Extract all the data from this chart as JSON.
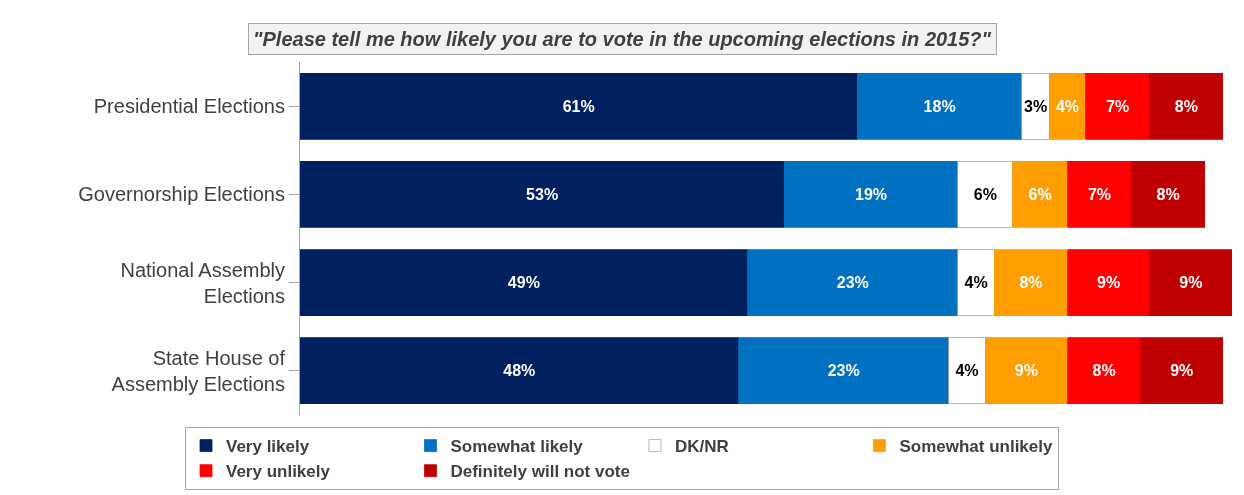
{
  "chart_data": {
    "type": "bar",
    "orientation": "horizontal",
    "stacked": true,
    "title": "\"Please tell me how likely you are to vote in the upcoming elections in 2015?\"",
    "categories": [
      "Presidential Elections",
      "Governorship Elections",
      "National Assembly Elections",
      "State House of Assembly Elections"
    ],
    "series": [
      {
        "name": "Very likely",
        "color": "#002060",
        "values": [
          61,
          53,
          49,
          48
        ],
        "value_labels": [
          "61%",
          "53%",
          "49%",
          "48%"
        ]
      },
      {
        "name": "Somewhat likely",
        "color": "#0070c0",
        "values": [
          18,
          19,
          23,
          23
        ],
        "value_labels": [
          "18%",
          "19%",
          "23%",
          "23%"
        ]
      },
      {
        "name": "DK/NR",
        "color": "#ffffff",
        "values": [
          3,
          6,
          4,
          4
        ],
        "value_labels": [
          "3%",
          "6%",
          "4%",
          "4%"
        ]
      },
      {
        "name": "Somewhat unlikely",
        "color": "#ff9e00",
        "values": [
          4,
          6,
          8,
          9
        ],
        "value_labels": [
          "4%",
          "6%",
          "8%",
          "9%"
        ]
      },
      {
        "name": "Very unlikely",
        "color": "#ff0000",
        "values": [
          7,
          7,
          9,
          8
        ],
        "value_labels": [
          "7%",
          "7%",
          "9%",
          "8%"
        ]
      },
      {
        "name": "Definitely will not vote",
        "color": "#c00000",
        "values": [
          8,
          8,
          9,
          9
        ],
        "value_labels": [
          "8%",
          "8%",
          "9%",
          "9%"
        ]
      }
    ],
    "xlim": [
      0,
      102
    ],
    "tick_labels": "y",
    "legend": "bottom"
  }
}
